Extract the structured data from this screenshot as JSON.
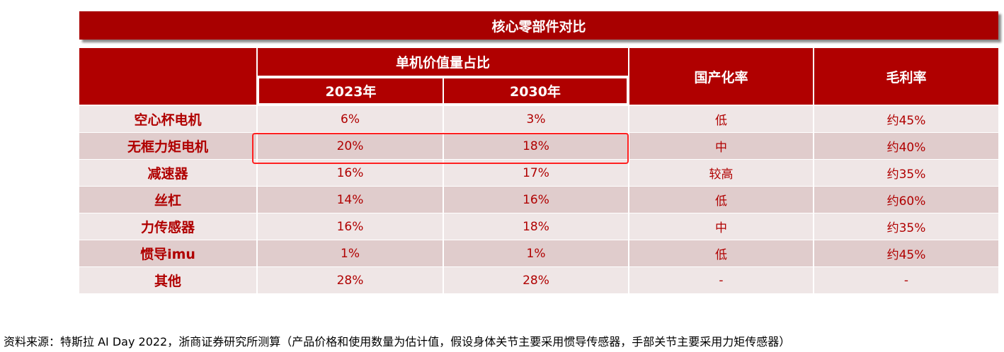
{
  "title": "核心零部件对比",
  "table": {
    "header": {
      "group": "单机价值量占比",
      "years": [
        "2023年",
        "2030年"
      ],
      "localization": "国产化率",
      "margin": "毛利率"
    },
    "rows": [
      [
        "空心杯电机",
        "6%",
        "3%",
        "低",
        "约45%"
      ],
      [
        "无框力矩电机",
        "20%",
        "18%",
        "中",
        "约40%"
      ],
      [
        "减速器",
        "16%",
        "17%",
        "较高",
        "约35%"
      ],
      [
        "丝杠",
        "14%",
        "16%",
        "低",
        "约60%"
      ],
      [
        "力传感器",
        "16%",
        "18%",
        "中",
        "约35%"
      ],
      [
        "惯导imu",
        "1%",
        "1%",
        "低",
        "约45%"
      ],
      [
        "其他",
        "28%",
        "28%",
        "-",
        "-"
      ]
    ]
  },
  "source": "资料来源：特斯拉 AI Day 2022，浙商证券研究所测算（产品价格和使用数量为估计值，假设身体关节主要采用惯导传感器，手部关节主要采用力矩传感器）"
}
